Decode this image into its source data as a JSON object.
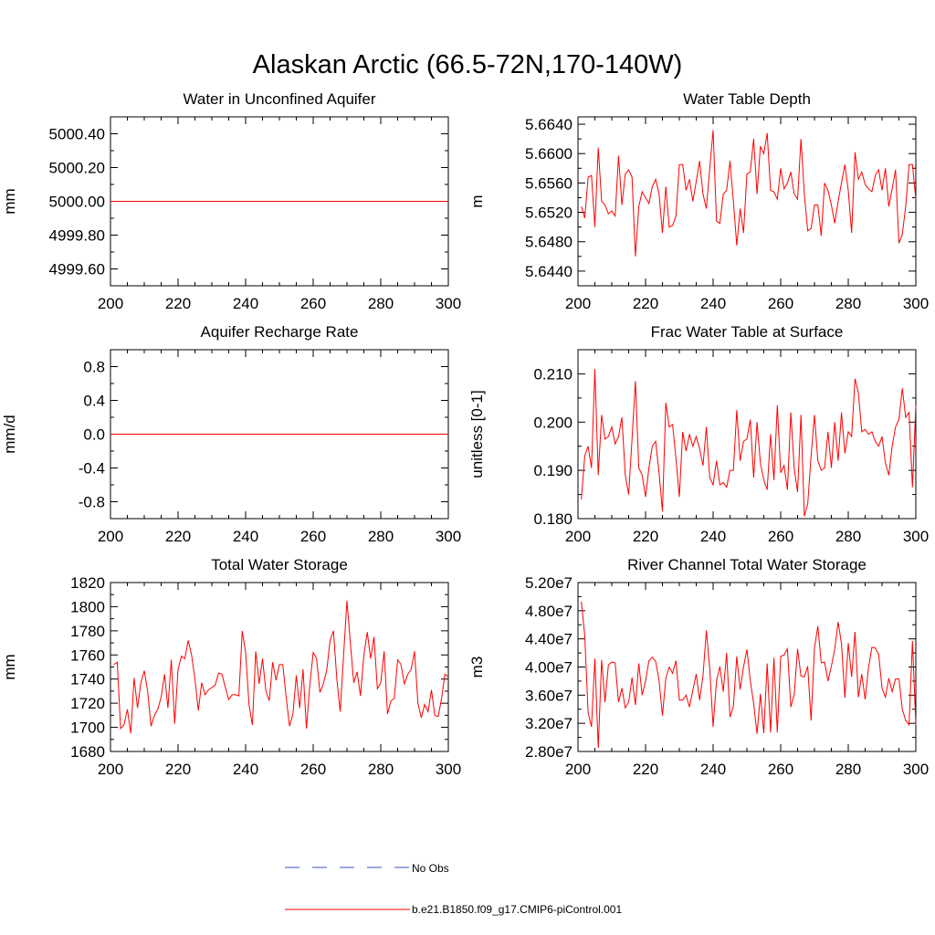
{
  "figure": {
    "title": "Alaskan Arctic (66.5-72N,170-140W)"
  },
  "legend": {
    "obs_label": "No Obs",
    "obs_color": "#3b4fc4",
    "model_label": "b.e21.B1850.f09_g17.CMIP6-piControl.001",
    "model_color": "#ff0000"
  },
  "chart_data": [
    {
      "type": "line",
      "title": "Water in Unconfined Aquifer",
      "ylabel": "mm",
      "xlabel": "",
      "xlim": [
        200,
        300
      ],
      "ylim": [
        4999.5,
        5000.5
      ],
      "xticks": [
        200,
        220,
        240,
        260,
        280,
        300
      ],
      "yticks": [
        4999.6,
        4999.8,
        5000.0,
        5000.2,
        5000.4
      ],
      "ytick_labels": [
        "4999.60",
        "4999.80",
        "5000.00",
        "5000.20",
        "5000.40"
      ],
      "x_start": 201,
      "values": [
        5000.0,
        5000.0
      ],
      "x": [
        200,
        300
      ]
    },
    {
      "type": "line",
      "title": "Water Table Depth",
      "ylabel": "m",
      "xlabel": "",
      "xlim": [
        200,
        300
      ],
      "ylim": [
        5.642,
        5.665
      ],
      "xticks": [
        200,
        220,
        240,
        260,
        280,
        300
      ],
      "yticks": [
        5.644,
        5.648,
        5.652,
        5.656,
        5.66,
        5.664
      ],
      "ytick_labels": [
        "5.6440",
        "5.6480",
        "5.6520",
        "5.6560",
        "5.6600",
        "5.6640"
      ],
      "x_start": 201,
      "values": [
        5.6528,
        5.6512,
        5.6568,
        5.657,
        5.65,
        5.6608,
        5.6535,
        5.653,
        5.6518,
        5.6522,
        5.6515,
        5.6597,
        5.653,
        5.6572,
        5.6578,
        5.6568,
        5.646,
        5.6528,
        5.6548,
        5.654,
        5.6532,
        5.6555,
        5.6565,
        5.6545,
        5.6492,
        5.6555,
        5.65,
        5.6502,
        5.6515,
        5.6585,
        5.6585,
        5.655,
        5.6565,
        5.6535,
        5.6562,
        5.659,
        5.6545,
        5.6525,
        5.658,
        5.6632,
        5.6508,
        5.6505,
        5.6545,
        5.655,
        5.659,
        5.6535,
        5.6475,
        5.6525,
        5.6492,
        5.6572,
        5.6575,
        5.662,
        5.6545,
        5.661,
        5.66,
        5.6628,
        5.655,
        5.6548,
        5.6538,
        5.658,
        5.6552,
        5.656,
        5.6575,
        5.6545,
        5.6538,
        5.662,
        5.6545,
        5.6495,
        5.6498,
        5.653,
        5.653,
        5.6488,
        5.656,
        5.655,
        5.653,
        5.6505,
        5.6535,
        5.656,
        5.6585,
        5.655,
        5.6492,
        5.6602,
        5.6565,
        5.6575,
        5.6558,
        5.6552,
        5.6548,
        5.657,
        5.6578,
        5.655,
        5.658,
        5.6528,
        5.6552,
        5.6578,
        5.6478,
        5.649,
        5.6528,
        5.6585,
        5.6585,
        5.6538
      ]
    },
    {
      "type": "line",
      "title": "Aquifer Recharge Rate",
      "ylabel": "mm/d",
      "xlabel": "",
      "xlim": [
        200,
        300
      ],
      "ylim": [
        -1.0,
        1.0
      ],
      "xticks": [
        200,
        220,
        240,
        260,
        280,
        300
      ],
      "yticks": [
        -0.8,
        -0.4,
        0.0,
        0.4,
        0.8
      ],
      "ytick_labels": [
        "-0.8",
        "-0.4",
        "0.0",
        "0.4",
        "0.8"
      ],
      "values": [
        0.0,
        0.0
      ],
      "x": [
        200,
        300
      ]
    },
    {
      "type": "line",
      "title": "Frac Water Table at Surface",
      "ylabel": "unitless [0-1]",
      "xlabel": "",
      "xlim": [
        200,
        300
      ],
      "ylim": [
        0.18,
        0.215
      ],
      "xticks": [
        200,
        220,
        240,
        260,
        280,
        300
      ],
      "yticks": [
        0.18,
        0.19,
        0.2,
        0.21
      ],
      "ytick_labels": [
        "0.180",
        "0.190",
        "0.200",
        "0.210"
      ],
      "x_start": 201,
      "values": [
        0.184,
        0.193,
        0.195,
        0.1905,
        0.211,
        0.189,
        0.2015,
        0.1965,
        0.197,
        0.199,
        0.1955,
        0.197,
        0.201,
        0.189,
        0.185,
        0.1965,
        0.2085,
        0.1905,
        0.189,
        0.1845,
        0.1905,
        0.195,
        0.196,
        0.1895,
        0.1815,
        0.204,
        0.199,
        0.1995,
        0.1925,
        0.1845,
        0.198,
        0.194,
        0.1975,
        0.195,
        0.197,
        0.1945,
        0.191,
        0.199,
        0.1885,
        0.187,
        0.192,
        0.187,
        0.1875,
        0.1865,
        0.19,
        0.19,
        0.2025,
        0.192,
        0.196,
        0.1965,
        0.2005,
        0.1885,
        0.2,
        0.1915,
        0.188,
        0.186,
        0.1975,
        0.188,
        0.2035,
        0.1895,
        0.191,
        0.186,
        0.202,
        0.1905,
        0.1855,
        0.2015,
        0.1805,
        0.183,
        0.193,
        0.2015,
        0.192,
        0.19,
        0.1905,
        0.198,
        0.1905,
        0.2,
        0.192,
        0.202,
        0.1935,
        0.198,
        0.197,
        0.209,
        0.206,
        0.198,
        0.1985,
        0.1975,
        0.198,
        0.196,
        0.195,
        0.197,
        0.1915,
        0.189,
        0.195,
        0.199,
        0.2005,
        0.207,
        0.201,
        0.202,
        0.1865,
        0.2035
      ]
    },
    {
      "type": "line",
      "title": "Total Water Storage",
      "ylabel": "mm",
      "xlabel": "",
      "xlim": [
        200,
        300
      ],
      "ylim": [
        1680,
        1820
      ],
      "xticks": [
        200,
        220,
        240,
        260,
        280,
        300
      ],
      "yticks": [
        1680,
        1700,
        1720,
        1740,
        1760,
        1780,
        1800,
        1820
      ],
      "ytick_labels": [
        "1680",
        "1700",
        "1720",
        "1740",
        "1760",
        "1780",
        "1800",
        "1820"
      ],
      "x_start": 201,
      "values": [
        1752,
        1754,
        1699,
        1702,
        1715,
        1695,
        1741,
        1716,
        1737,
        1747,
        1730,
        1701,
        1710,
        1715,
        1725,
        1744,
        1716,
        1756,
        1703,
        1748,
        1759,
        1757,
        1772,
        1760,
        1740,
        1714,
        1737,
        1727,
        1731,
        1733,
        1735,
        1745,
        1744,
        1733,
        1723,
        1727,
        1727,
        1726,
        1780,
        1762,
        1719,
        1702,
        1763,
        1736,
        1757,
        1730,
        1722,
        1754,
        1739,
        1752,
        1752,
        1725,
        1701,
        1711,
        1743,
        1716,
        1748,
        1699,
        1735,
        1762,
        1757,
        1729,
        1736,
        1747,
        1772,
        1780,
        1740,
        1713,
        1760,
        1805,
        1770,
        1737,
        1746,
        1726,
        1760,
        1779,
        1757,
        1775,
        1732,
        1737,
        1763,
        1711,
        1722,
        1724,
        1756,
        1752,
        1736,
        1744,
        1748,
        1763,
        1720,
        1708,
        1719,
        1713,
        1731,
        1710,
        1709,
        1724,
        1744,
        1742
      ]
    },
    {
      "type": "line",
      "title": "River Channel Total Water Storage",
      "ylabel": "m3",
      "xlabel": "",
      "xlim": [
        200,
        300
      ],
      "ylim": [
        28000000.0,
        52000000.0
      ],
      "xticks": [
        200,
        220,
        240,
        260,
        280,
        300
      ],
      "yticks": [
        28000000.0,
        32000000.0,
        36000000.0,
        40000000.0,
        44000000.0,
        48000000.0,
        52000000.0
      ],
      "ytick_labels": [
        "2.80e7",
        "3.20e7",
        "3.60e7",
        "4.00e7",
        "4.40e7",
        "4.80e7",
        "5.20e7"
      ],
      "x_start": 201,
      "values": [
        49300000,
        44500000,
        33500000,
        31500000,
        41200000,
        28500000,
        41000000,
        35000000,
        40300000,
        40700000,
        40600000,
        35000000,
        37000000,
        34200000,
        35000000,
        38500000,
        34600000,
        40500000,
        36000000,
        38000000,
        40900000,
        41400000,
        40800000,
        38100000,
        33100000,
        38400000,
        40000000,
        39100000,
        40900000,
        35300000,
        35300000,
        36000000,
        34300000,
        36700000,
        39000000,
        35300000,
        38700000,
        45200000,
        39700000,
        31500000,
        38000000,
        40100000,
        36500000,
        42000000,
        32900000,
        34400000,
        41500000,
        36800000,
        40000000,
        42500000,
        38100000,
        34800000,
        30500000,
        36200000,
        30600000,
        40500000,
        30700000,
        41300000,
        30700000,
        41500000,
        41700000,
        42600000,
        34300000,
        36100000,
        42600000,
        38700000,
        38600000,
        40100000,
        32400000,
        42700000,
        45800000,
        40600000,
        40700000,
        38000000,
        40100000,
        42500000,
        46400000,
        43300000,
        35600000,
        43400000,
        38600000,
        45000000,
        35700000,
        39000000,
        35400000,
        39900000,
        42800000,
        42700000,
        41800000,
        37000000,
        35700000,
        38400000,
        36500000,
        38300000,
        38300000,
        34000000,
        32400000,
        31800000,
        43700000,
        31800000
      ]
    }
  ]
}
